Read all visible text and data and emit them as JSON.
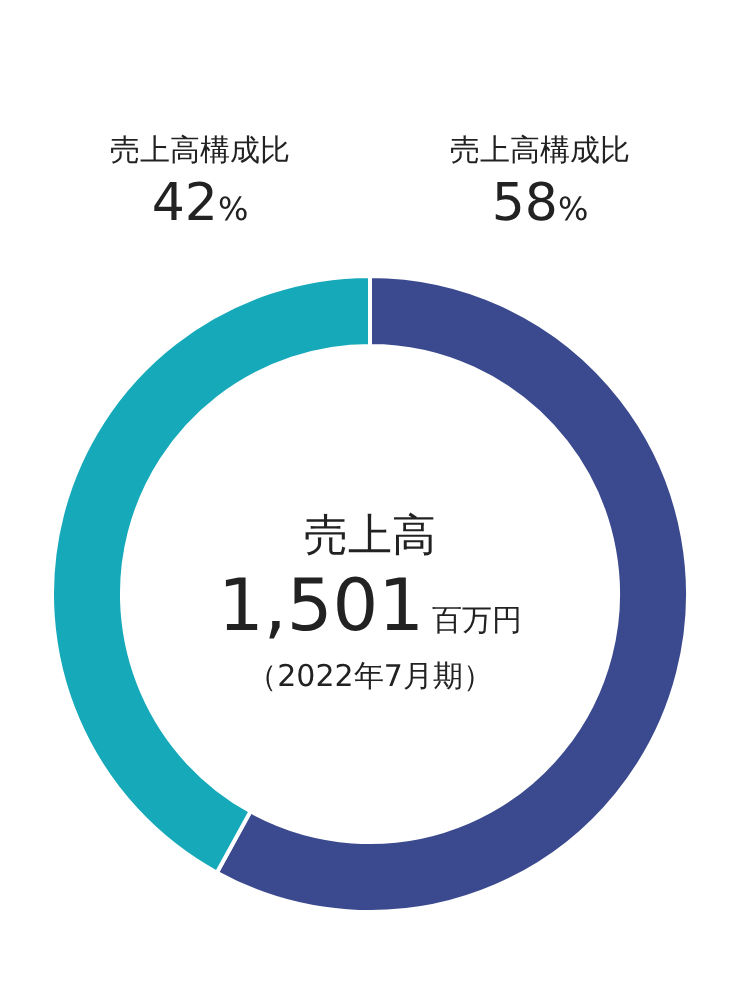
{
  "chart_data": {
    "type": "donut",
    "title": "売上高",
    "categories": [
      "売上高構成比",
      "売上高構成比"
    ],
    "values": [
      58,
      42
    ],
    "colors": [
      "#3b4a8e",
      "#16a9b9"
    ],
    "value_labels": [
      "58%",
      "42%"
    ],
    "annotations": [
      "1,501百万円",
      "（2022年7月期）"
    ],
    "legend": false
  }
}
